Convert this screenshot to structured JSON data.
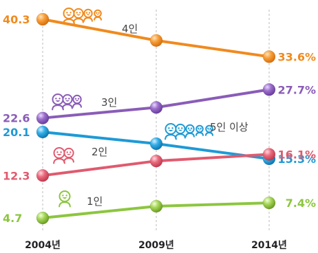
{
  "chart_data": {
    "type": "line",
    "categories": [
      "2004년",
      "2009년",
      "2014년"
    ],
    "series": [
      {
        "name": "4인",
        "color": "#F08A1E",
        "icon": "four-person-icon",
        "values": [
          40.3,
          36.5,
          33.6
        ],
        "label_start": "40.3",
        "label_end": "33.6%"
      },
      {
        "name": "3인",
        "color": "#8A5CB8",
        "icon": "three-person-icon",
        "values": [
          22.6,
          24.5,
          27.7
        ],
        "label_start": "22.6",
        "label_end": "27.7%"
      },
      {
        "name": "5인 이상",
        "color": "#1E9AD6",
        "icon": "five-person-icon",
        "values": [
          20.1,
          18.0,
          15.3
        ],
        "label_start": "20.1",
        "label_end": "15.3%"
      },
      {
        "name": "2인",
        "color": "#E05A6E",
        "icon": "two-person-icon",
        "values": [
          12.3,
          14.9,
          16.1
        ],
        "label_start": "12.3",
        "label_end": "16.1%"
      },
      {
        "name": "1인",
        "color": "#8CC63F",
        "icon": "one-person-icon",
        "values": [
          4.7,
          6.8,
          7.4
        ],
        "label_start": "4.7",
        "label_end": "7.4%"
      }
    ],
    "ylim": [
      4.7,
      40.3
    ],
    "grid": "vertical-dashed",
    "legend": "inline-near-lines"
  }
}
